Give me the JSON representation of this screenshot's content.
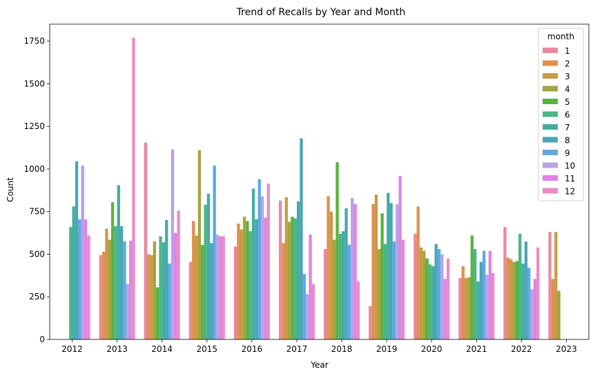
{
  "chart_data": {
    "type": "bar",
    "title": "Trend of Recalls by Year and Month",
    "xlabel": "Year",
    "ylabel": "Count",
    "categories": [
      "2012",
      "2013",
      "2014",
      "2015",
      "2016",
      "2017",
      "2018",
      "2019",
      "2020",
      "2021",
      "2022",
      "2023"
    ],
    "ylim": [
      0,
      1850
    ],
    "yticks": [
      0,
      250,
      500,
      750,
      1000,
      1250,
      1500,
      1750
    ],
    "ytick_labels": [
      "0",
      "250",
      "500",
      "750",
      "1000",
      "1250",
      "1500",
      "1750"
    ],
    "grid": false,
    "legend": {
      "title": "month",
      "position": "top-right"
    },
    "series": [
      {
        "name": "1",
        "color": "#e98a9c",
        "values": [
          null,
          495,
          1155,
          455,
          545,
          815,
          530,
          195,
          620,
          360,
          660,
          630
        ]
      },
      {
        "name": "2",
        "color": "#e0904e",
        "values": [
          null,
          515,
          500,
          695,
          680,
          565,
          840,
          795,
          780,
          430,
          480,
          355
        ]
      },
      {
        "name": "3",
        "color": "#c79b45",
        "values": [
          null,
          650,
          495,
          610,
          645,
          835,
          750,
          850,
          540,
          360,
          470,
          630
        ]
      },
      {
        "name": "4",
        "color": "#a4a43f",
        "values": [
          null,
          585,
          575,
          1110,
          720,
          690,
          585,
          530,
          520,
          365,
          455,
          285
        ]
      },
      {
        "name": "5",
        "color": "#59b33e",
        "values": [
          null,
          805,
          305,
          555,
          695,
          720,
          1040,
          740,
          475,
          610,
          460,
          null
        ]
      },
      {
        "name": "6",
        "color": "#4ab589",
        "values": [
          660,
          665,
          605,
          790,
          635,
          710,
          620,
          560,
          440,
          530,
          620,
          null
        ]
      },
      {
        "name": "7",
        "color": "#45ada0",
        "values": [
          780,
          905,
          570,
          855,
          885,
          810,
          635,
          860,
          430,
          340,
          445,
          null
        ]
      },
      {
        "name": "8",
        "color": "#4aa6b4",
        "values": [
          1045,
          665,
          700,
          565,
          705,
          1180,
          770,
          800,
          560,
          455,
          575,
          null
        ]
      },
      {
        "name": "9",
        "color": "#5ea9e3",
        "values": [
          705,
          575,
          445,
          1020,
          940,
          385,
          555,
          575,
          530,
          520,
          420,
          null
        ]
      },
      {
        "name": "10",
        "color": "#b7a3e6",
        "values": [
          1020,
          325,
          1115,
          615,
          840,
          265,
          830,
          795,
          500,
          380,
          295,
          null
        ]
      },
      {
        "name": "11",
        "color": "#e083e6",
        "values": [
          705,
          580,
          625,
          605,
          715,
          615,
          795,
          960,
          355,
          520,
          355,
          null
        ]
      },
      {
        "name": "12",
        "color": "#ea8cc3",
        "values": [
          610,
          1770,
          755,
          605,
          915,
          325,
          340,
          585,
          475,
          390,
          540,
          null
        ]
      }
    ]
  }
}
